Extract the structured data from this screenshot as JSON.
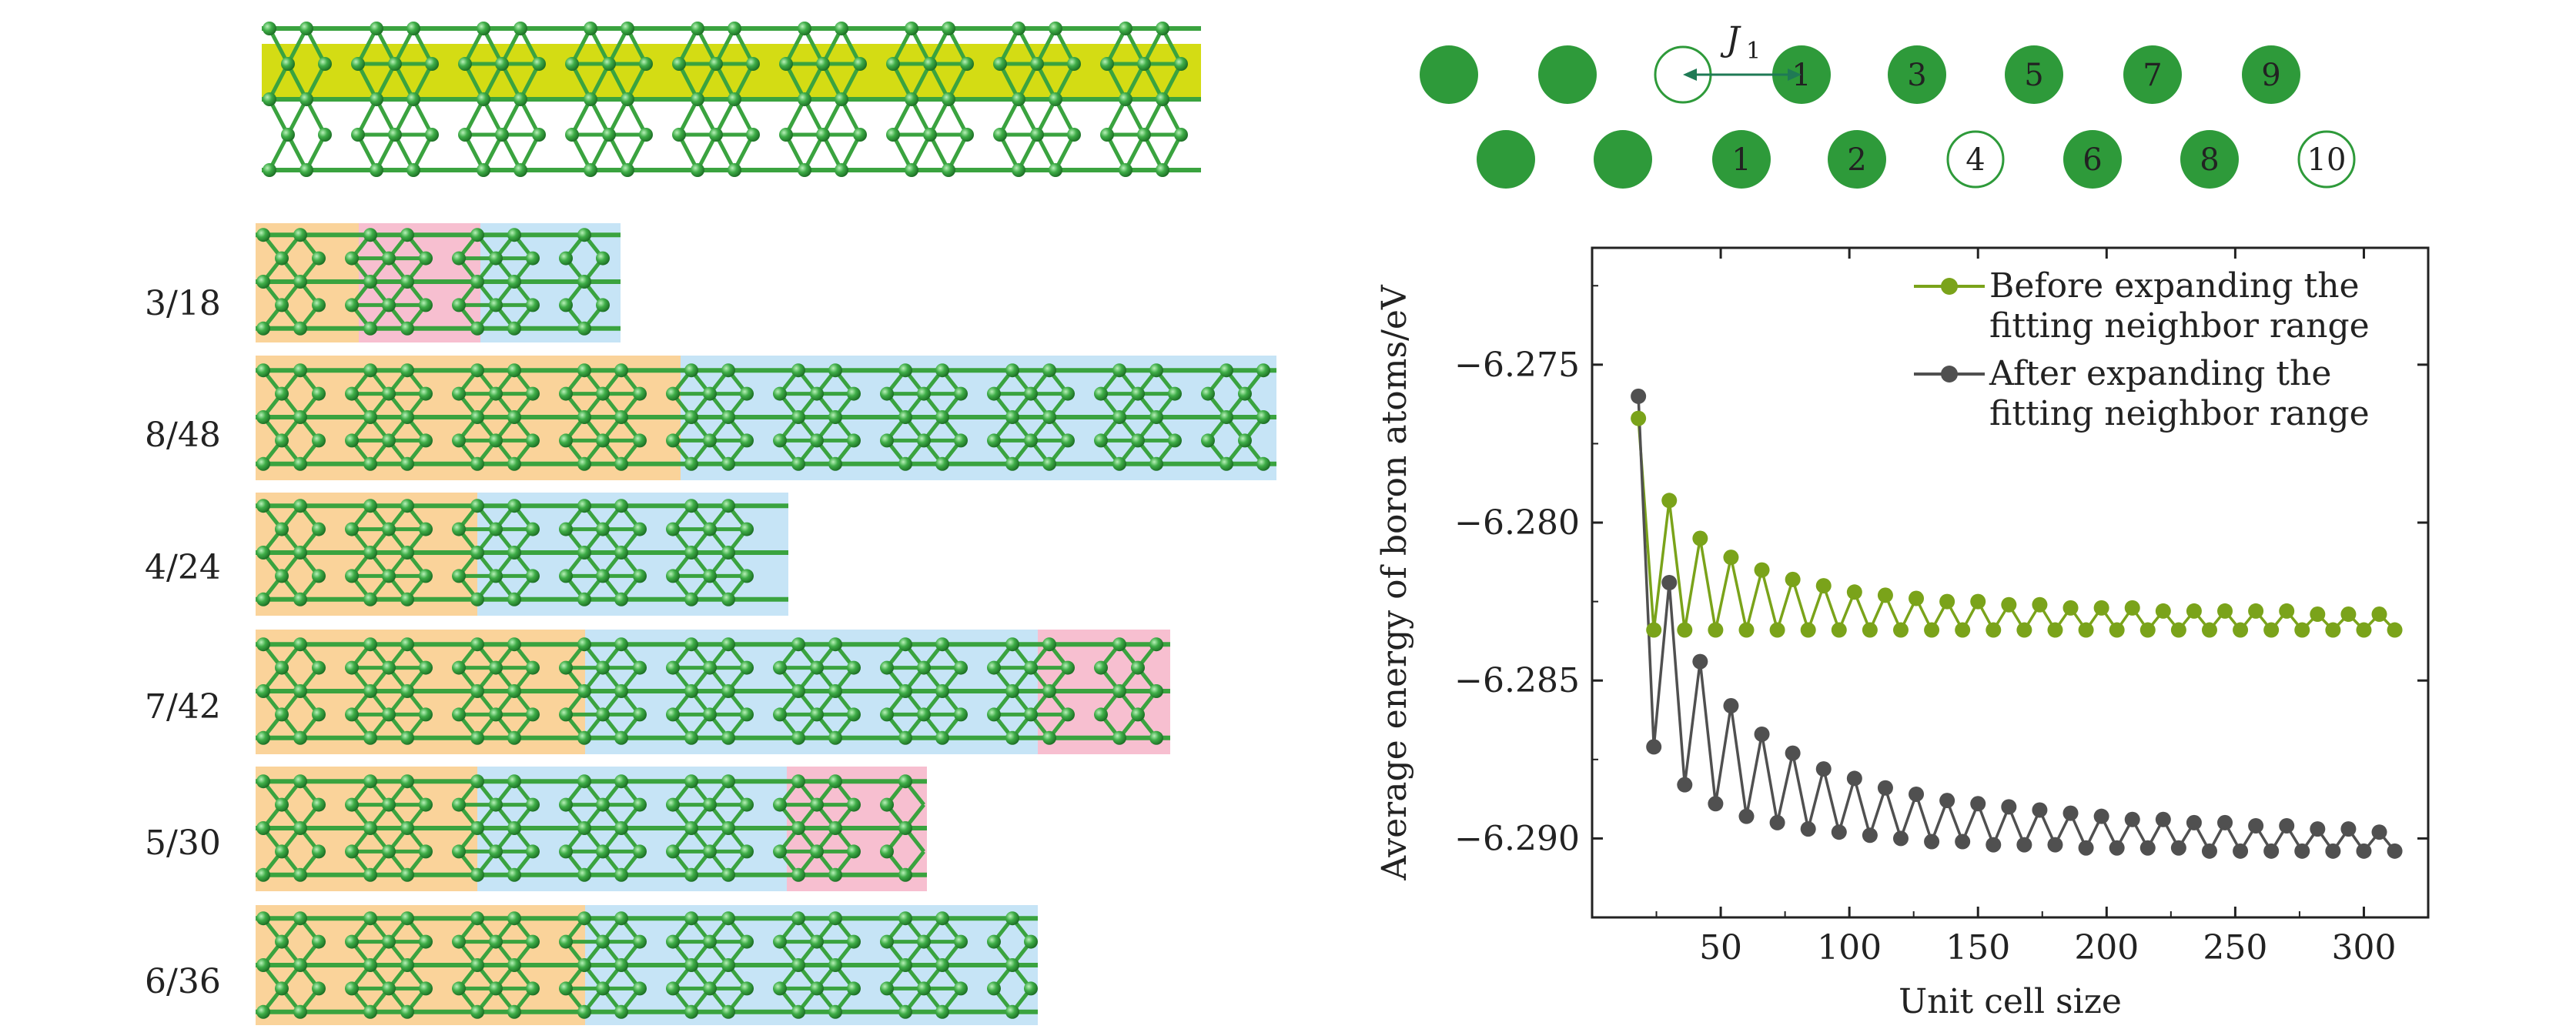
{
  "structures": {
    "rows": [
      {
        "label": "3/18",
        "segments": [
          "orange",
          "pink",
          "blue"
        ]
      },
      {
        "label": "8/48",
        "segments": [
          "orange",
          "blue"
        ]
      },
      {
        "label": "4/24",
        "segments": [
          "orange",
          "blue"
        ]
      },
      {
        "label": "7/42",
        "segments": [
          "orange",
          "blue",
          "pink"
        ]
      },
      {
        "label": "5/30",
        "segments": [
          "orange",
          "blue",
          "pink"
        ]
      },
      {
        "label": "6/36",
        "segments": [
          "orange",
          "blue"
        ]
      }
    ]
  },
  "chain": {
    "coupling_label": "J",
    "coupling_sub": "1",
    "top_row": [
      {
        "label": "",
        "filled": true
      },
      {
        "label": "",
        "filled": true
      },
      {
        "label": "",
        "filled": false
      },
      {
        "label": "1",
        "filled": true
      },
      {
        "label": "3",
        "filled": true
      },
      {
        "label": "5",
        "filled": true
      },
      {
        "label": "7",
        "filled": true
      },
      {
        "label": "9",
        "filled": true
      }
    ],
    "bottom_row": [
      {
        "label": "",
        "filled": true
      },
      {
        "label": "",
        "filled": true
      },
      {
        "label": "1",
        "filled": true
      },
      {
        "label": "2",
        "filled": true
      },
      {
        "label": "4",
        "filled": false
      },
      {
        "label": "6",
        "filled": true
      },
      {
        "label": "8",
        "filled": true
      },
      {
        "label": "10",
        "filled": false
      }
    ]
  },
  "colors": {
    "atom_green": "#2e9a3a",
    "bond_green": "#3aa33f",
    "ribbon_yellow": "#d4dc14",
    "region_orange": "#fad39a",
    "region_pink": "#f7bfd0",
    "region_blue": "#c6e4f6",
    "series_before": "#7aa31a",
    "series_after": "#505050"
  },
  "chart_data": {
    "type": "line",
    "xlabel": "Unit cell size",
    "ylabel": "Average energy of boron atoms/eV",
    "xlim": [
      0,
      325
    ],
    "ylim": [
      -6.2925,
      -6.2713
    ],
    "xticks": [
      50,
      100,
      150,
      200,
      250,
      300
    ],
    "xtick_labels": [
      "50",
      "100",
      "150",
      "200",
      "250",
      "300"
    ],
    "yticks": [
      -6.275,
      -6.28,
      -6.285,
      -6.29
    ],
    "ytick_labels": [
      "−6.275",
      "−6.280",
      "−6.285",
      "−6.290"
    ],
    "legend_position": "top-right",
    "series": [
      {
        "name": "Before expanding the fitting neighbor range",
        "color": "#7aa31a",
        "x": [
          18,
          24,
          30,
          36,
          42,
          48,
          54,
          60,
          66,
          72,
          78,
          84,
          90,
          96,
          102,
          108,
          114,
          120,
          126,
          132,
          138,
          144,
          150,
          156,
          162,
          168,
          174,
          180,
          186,
          192,
          198,
          204,
          210,
          216,
          222,
          228,
          234,
          240,
          246,
          252,
          258,
          264,
          270,
          276,
          282,
          288,
          294,
          300,
          306,
          312
        ],
        "y": [
          -6.2767,
          -6.2834,
          -6.2793,
          -6.2834,
          -6.2805,
          -6.2834,
          -6.2811,
          -6.2834,
          -6.2815,
          -6.2834,
          -6.2818,
          -6.2834,
          -6.282,
          -6.2834,
          -6.2822,
          -6.2834,
          -6.2823,
          -6.2834,
          -6.2824,
          -6.2834,
          -6.2825,
          -6.2834,
          -6.2825,
          -6.2834,
          -6.2826,
          -6.2834,
          -6.2826,
          -6.2834,
          -6.2827,
          -6.2834,
          -6.2827,
          -6.2834,
          -6.2827,
          -6.2834,
          -6.2828,
          -6.2834,
          -6.2828,
          -6.2834,
          -6.2828,
          -6.2834,
          -6.2828,
          -6.2834,
          -6.2828,
          -6.2834,
          -6.2829,
          -6.2834,
          -6.2829,
          -6.2834,
          -6.2829,
          -6.2834
        ]
      },
      {
        "name": "After expanding the fitting neighbor range",
        "color": "#505050",
        "x": [
          18,
          24,
          30,
          36,
          42,
          48,
          54,
          60,
          66,
          72,
          78,
          84,
          90,
          96,
          102,
          108,
          114,
          120,
          126,
          132,
          138,
          144,
          150,
          156,
          162,
          168,
          174,
          180,
          186,
          192,
          198,
          204,
          210,
          216,
          222,
          228,
          234,
          240,
          246,
          252,
          258,
          264,
          270,
          276,
          282,
          288,
          294,
          300,
          306,
          312
        ],
        "y": [
          -6.276,
          -6.2871,
          -6.2819,
          -6.2883,
          -6.2844,
          -6.2889,
          -6.2858,
          -6.2893,
          -6.2867,
          -6.2895,
          -6.2873,
          -6.2897,
          -6.2878,
          -6.2898,
          -6.2881,
          -6.2899,
          -6.2884,
          -6.29,
          -6.2886,
          -6.2901,
          -6.2888,
          -6.2901,
          -6.2889,
          -6.2902,
          -6.289,
          -6.2902,
          -6.2891,
          -6.2902,
          -6.2892,
          -6.2903,
          -6.2893,
          -6.2903,
          -6.2894,
          -6.2903,
          -6.2894,
          -6.2903,
          -6.2895,
          -6.2904,
          -6.2895,
          -6.2904,
          -6.2896,
          -6.2904,
          -6.2896,
          -6.2904,
          -6.2897,
          -6.2904,
          -6.2897,
          -6.2904,
          -6.2898,
          -6.2904
        ]
      }
    ]
  }
}
